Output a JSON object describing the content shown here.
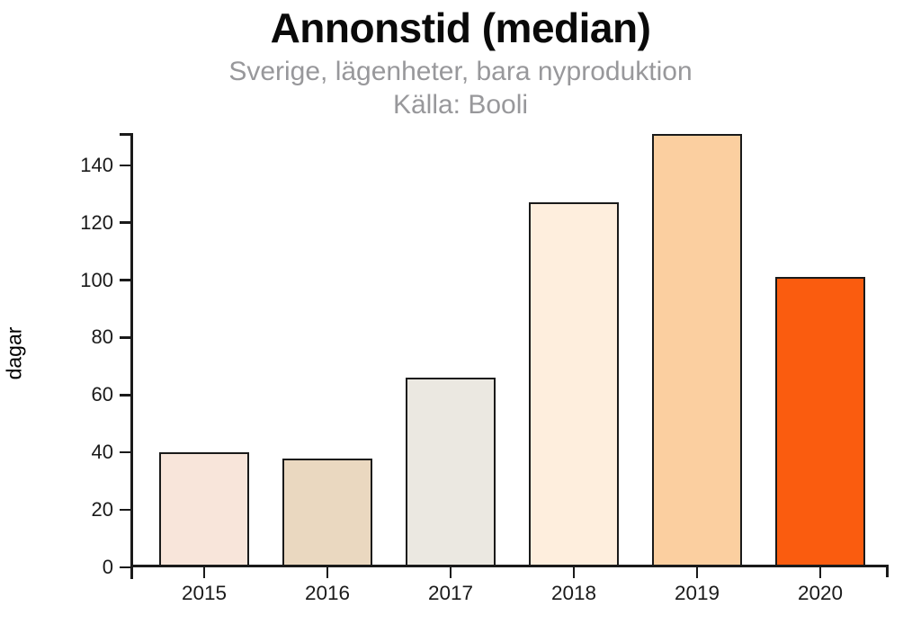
{
  "page": {
    "background": "#ffffff"
  },
  "chart_data": {
    "type": "bar",
    "title": "Annonstid (median)",
    "subtitle": "Sverige, lägenheter, bara nyproduktion",
    "source": "Källa: Booli",
    "ylabel": "dagar",
    "xlabel": "",
    "categories": [
      "2015",
      "2016",
      "2017",
      "2018",
      "2019",
      "2020"
    ],
    "values": [
      40,
      38,
      66,
      127,
      151,
      101
    ],
    "yticks": [
      0,
      20,
      40,
      60,
      80,
      100,
      120,
      140
    ],
    "ylim": [
      0,
      151.2
    ],
    "grid": false,
    "legend": "none",
    "bar_colors": [
      "#f8e5da",
      "#ead8c0",
      "#ebe8e1",
      "#feeedd",
      "#fbcfa0",
      "#fa5c0f"
    ],
    "bar_edge_color": "#1a1a1a",
    "axis_color": "#1a1a1a",
    "title_color": "#0a0a0a",
    "subtitle_color": "#98989b",
    "tick_label_color": "#1a1a1a"
  }
}
